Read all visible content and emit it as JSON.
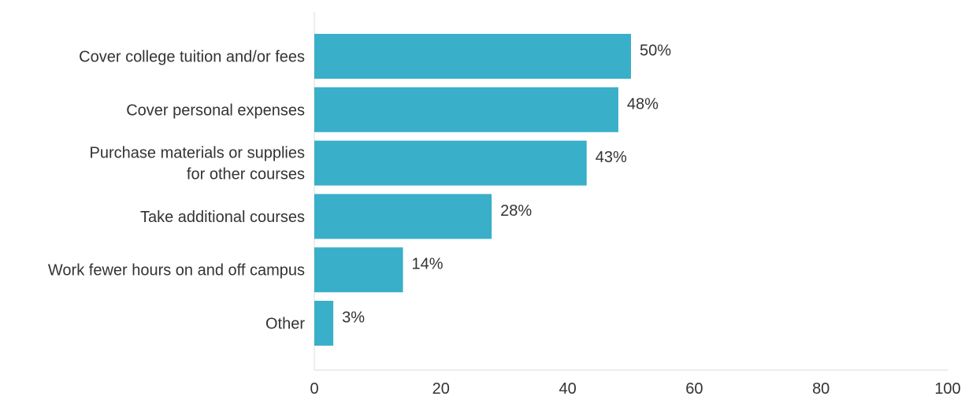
{
  "chart_data": {
    "type": "bar",
    "orientation": "horizontal",
    "categories": [
      "Cover college tuition and/or fees",
      "Cover personal expenses",
      "Purchase materials or supplies for other courses",
      "Take additional courses",
      "Work fewer hours on and off campus",
      "Other"
    ],
    "category_lines": [
      [
        "Cover college tuition and/or fees"
      ],
      [
        "Cover personal expenses"
      ],
      [
        "Purchase materials or supplies",
        "for other courses"
      ],
      [
        "Take additional courses"
      ],
      [
        "Work fewer hours on and off campus"
      ],
      [
        "Other"
      ]
    ],
    "values": [
      50,
      48,
      43,
      28,
      14,
      3
    ],
    "data_labels": [
      "50%",
      "48%",
      "43%",
      "28%",
      "14%",
      "3%"
    ],
    "xlim": [
      0,
      100
    ],
    "xticks": [
      0,
      20,
      40,
      60,
      80,
      100
    ],
    "grid": false,
    "bar_color": "#3aafc9",
    "title": "",
    "xlabel": "",
    "ylabel": ""
  }
}
